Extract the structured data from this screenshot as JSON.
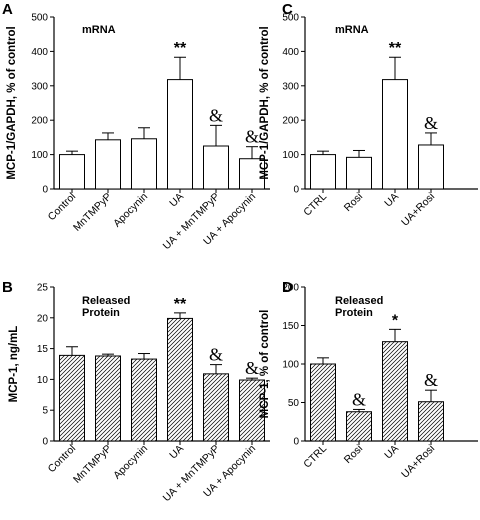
{
  "colors": {
    "bar_fill": "#ffffff",
    "hatch_stroke": "#000000",
    "axis": "#000000"
  },
  "chart_data": [
    {
      "panel": "A",
      "type": "bar",
      "fill": "solid",
      "inner_label": [
        "mRNA"
      ],
      "ylabel": "MCP-1/GAPDH, % of control",
      "ylim": [
        0,
        500
      ],
      "yticks": [
        0,
        100,
        200,
        300,
        400,
        500
      ],
      "categories": [
        "Control",
        "MnTMPyP",
        "Apocynin",
        "UA",
        "UA + MnTMPyP",
        "UA + Apocynin"
      ],
      "values": [
        100,
        143,
        146,
        318,
        125,
        88
      ],
      "errors": [
        10,
        20,
        32,
        65,
        60,
        35
      ],
      "annotations": [
        "",
        "",
        "",
        "**",
        "&",
        "&"
      ]
    },
    {
      "panel": "B",
      "type": "bar",
      "fill": "hatched",
      "inner_label": [
        "Released",
        "Protein"
      ],
      "ylabel": "MCP-1, ng/mL",
      "ylim": [
        0,
        25
      ],
      "yticks": [
        0,
        5,
        10,
        15,
        20,
        25
      ],
      "categories": [
        "Control",
        "MnTMPyP",
        "Apocynin",
        "UA",
        "UA + MnTMPyP",
        "UA + Apocynin"
      ],
      "values": [
        13.9,
        13.8,
        13.3,
        19.9,
        10.9,
        9.9
      ],
      "errors": [
        1.4,
        0.3,
        0.9,
        0.9,
        1.5,
        0.3
      ],
      "annotations": [
        "",
        "",
        "",
        "**",
        "&",
        "&"
      ]
    },
    {
      "panel": "C",
      "type": "bar",
      "fill": "solid",
      "inner_label": [
        "mRNA"
      ],
      "ylabel": "MCP-1/GAPDH, % of control",
      "ylim": [
        0,
        500
      ],
      "yticks": [
        0,
        100,
        200,
        300,
        400,
        500
      ],
      "categories": [
        "CTRL",
        "Rosi",
        "UA",
        "UA+Rosi"
      ],
      "values": [
        100,
        92,
        318,
        128
      ],
      "errors": [
        10,
        20,
        65,
        35
      ],
      "annotations": [
        "",
        "",
        "**",
        "&"
      ]
    },
    {
      "panel": "D",
      "type": "bar",
      "fill": "hatched",
      "inner_label": [
        "Released",
        "Protein"
      ],
      "ylabel": "MCP-1, % of control",
      "ylim": [
        0,
        200
      ],
      "yticks": [
        0,
        50,
        100,
        150,
        200
      ],
      "categories": [
        "CTRL",
        "Rosi",
        "UA",
        "UA+Rosi"
      ],
      "values": [
        100,
        38,
        129,
        51
      ],
      "errors": [
        8,
        3,
        16,
        15
      ],
      "annotations": [
        "",
        "&",
        "*",
        "&"
      ]
    }
  ]
}
